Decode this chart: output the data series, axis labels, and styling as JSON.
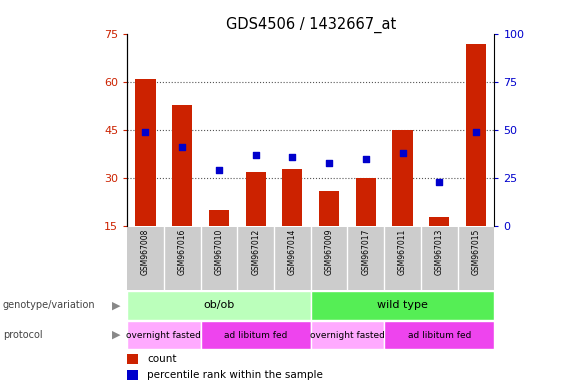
{
  "title": "GDS4506 / 1432667_at",
  "samples": [
    "GSM967008",
    "GSM967016",
    "GSM967010",
    "GSM967012",
    "GSM967014",
    "GSM967009",
    "GSM967017",
    "GSM967011",
    "GSM967013",
    "GSM967015"
  ],
  "counts": [
    61,
    53,
    20,
    32,
    33,
    26,
    30,
    45,
    18,
    72
  ],
  "percentiles": [
    49,
    41,
    29,
    37,
    36,
    33,
    35,
    38,
    23,
    49
  ],
  "ylim_left": [
    15,
    75
  ],
  "ylim_right": [
    0,
    100
  ],
  "yticks_left": [
    15,
    30,
    45,
    60,
    75
  ],
  "yticks_right": [
    0,
    25,
    50,
    75,
    100
  ],
  "bar_color": "#cc2200",
  "dot_color": "#0000cc",
  "genotype_groups": [
    {
      "label": "ob/ob",
      "start": 0,
      "end": 5,
      "color": "#bbffbb"
    },
    {
      "label": "wild type",
      "start": 5,
      "end": 10,
      "color": "#55ee55"
    }
  ],
  "protocol_groups": [
    {
      "label": "overnight fasted",
      "start": 0,
      "end": 2,
      "color": "#ffaaff"
    },
    {
      "label": "ad libitum fed",
      "start": 2,
      "end": 5,
      "color": "#ee44ee"
    },
    {
      "label": "overnight fasted",
      "start": 5,
      "end": 7,
      "color": "#ffaaff"
    },
    {
      "label": "ad libitum fed",
      "start": 7,
      "end": 10,
      "color": "#ee44ee"
    }
  ],
  "left_tick_color": "#cc2200",
  "right_tick_color": "#0000cc",
  "sample_box_color": "#cccccc",
  "dot_grid_color": "#555555",
  "legend_count_color": "#cc2200",
  "legend_pct_color": "#0000cc"
}
